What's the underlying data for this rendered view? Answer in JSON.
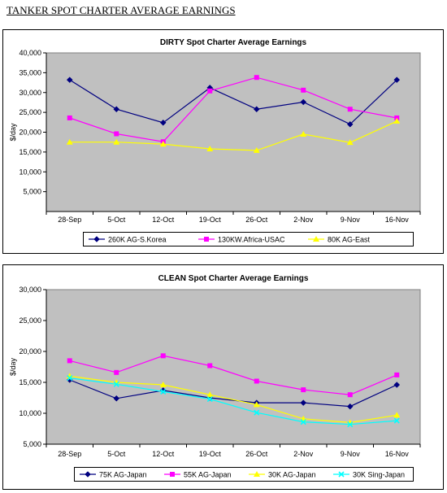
{
  "page_title": "TANKER SPOT CHARTER AVERAGE EARNINGS",
  "colors": {
    "plot_bg": "#c0c0c0",
    "navy": "#000080",
    "magenta": "#ff00ff",
    "yellow": "#ffff00",
    "cyan": "#00ffff"
  },
  "chart_data": [
    {
      "type": "line",
      "title": "DIRTY Spot Charter Average  Earnings",
      "xlabel": "",
      "ylabel": "$/day",
      "categories": [
        "28-Sep",
        "5-Oct",
        "12-Oct",
        "19-Oct",
        "26-Oct",
        "2-Nov",
        "9-Nov",
        "16-Nov"
      ],
      "ylim": [
        0,
        40000
      ],
      "yticks": [
        {
          "value": 5000,
          "label": "5,000"
        },
        {
          "value": 10000,
          "label": "10,000"
        },
        {
          "value": 15000,
          "label": "15,000"
        },
        {
          "value": 20000,
          "label": "20,000"
        },
        {
          "value": 25000,
          "label": "25,000"
        },
        {
          "value": 30000,
          "label": "30,000"
        },
        {
          "value": 35000,
          "label": "35,000"
        },
        {
          "value": 40000,
          "label": "40,000"
        }
      ],
      "grid": false,
      "legend_position": "bottom",
      "series": [
        {
          "name": "260K AG-S.Korea",
          "color": "#000080",
          "marker": "diamond",
          "values": [
            33200,
            25800,
            22400,
            31200,
            25800,
            27600,
            22000,
            33200
          ]
        },
        {
          "name": "130KW.Africa-USAC",
          "color": "#ff00ff",
          "marker": "square",
          "values": [
            23600,
            19600,
            17600,
            30400,
            33800,
            30600,
            25800,
            23600
          ]
        },
        {
          "name": "80K AG-East",
          "color": "#ffff00",
          "marker": "triangle",
          "values": [
            17500,
            17500,
            17000,
            15800,
            15400,
            19500,
            17400,
            22800
          ]
        }
      ]
    },
    {
      "type": "line",
      "title": "CLEAN Spot Charter Average Earnings",
      "xlabel": "",
      "ylabel": "$/day",
      "categories": [
        "28-Sep",
        "5-Oct",
        "12-Oct",
        "19-Oct",
        "26-Oct",
        "2-Nov",
        "9-Nov",
        "16-Nov"
      ],
      "ylim": [
        5000,
        30000
      ],
      "yticks": [
        {
          "value": 5000,
          "label": "5,000"
        },
        {
          "value": 10000,
          "label": "10,000"
        },
        {
          "value": 15000,
          "label": "15,000"
        },
        {
          "value": 20000,
          "label": "20,000"
        },
        {
          "value": 25000,
          "label": "25,000"
        },
        {
          "value": 30000,
          "label": "30,000"
        }
      ],
      "grid": false,
      "legend_position": "bottom",
      "series": [
        {
          "name": "75K AG-Japan",
          "color": "#000080",
          "marker": "diamond",
          "values": [
            15400,
            12400,
            13700,
            12500,
            11700,
            11700,
            11100,
            14600
          ]
        },
        {
          "name": "55K AG-Japan",
          "color": "#ff00ff",
          "marker": "square",
          "values": [
            18500,
            16600,
            19300,
            17700,
            15200,
            13800,
            13000,
            16200
          ]
        },
        {
          "name": "30K AG-Japan",
          "color": "#ffff00",
          "marker": "triangle",
          "values": [
            16000,
            15000,
            14600,
            13000,
            11400,
            9100,
            8500,
            9700
          ]
        },
        {
          "name": "30K Sing-Japan",
          "color": "#00ffff",
          "marker": "x",
          "values": [
            15700,
            14700,
            13500,
            12300,
            10100,
            8600,
            8200,
            8800
          ]
        }
      ]
    }
  ]
}
